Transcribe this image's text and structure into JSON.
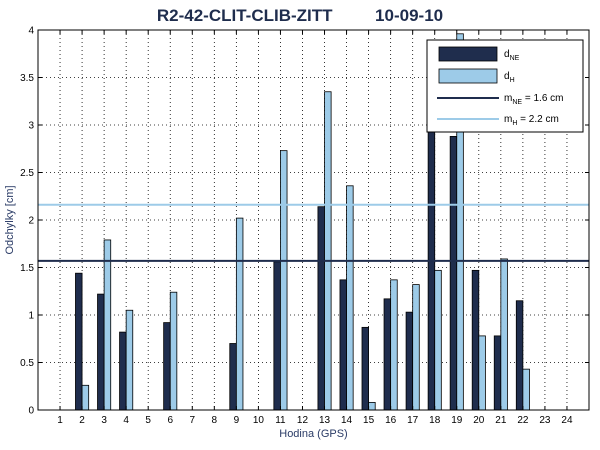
{
  "chart_data": {
    "type": "bar",
    "title_left": "R2-42-CLIT-CLIB-ZITT",
    "title_right": "10-09-10",
    "xlabel": "Hodina (GPS)",
    "ylabel": "Odchylky [cm]",
    "ylim": [
      0,
      4
    ],
    "yticks": [
      "0",
      "0.5",
      "1",
      "1.5",
      "2",
      "2.5",
      "3",
      "3.5",
      "4"
    ],
    "categories": [
      "1",
      "2",
      "3",
      "4",
      "5",
      "6",
      "7",
      "8",
      "9",
      "10",
      "11",
      "12",
      "13",
      "14",
      "15",
      "16",
      "17",
      "18",
      "19",
      "20",
      "21",
      "22",
      "23",
      "24"
    ],
    "grid": true,
    "legend_position": "top-right",
    "series": [
      {
        "name": "d",
        "name_sub": "NE",
        "color": "#1f2d4d",
        "values": [
          null,
          1.44,
          1.22,
          0.82,
          null,
          0.92,
          null,
          null,
          0.7,
          null,
          1.56,
          null,
          2.14,
          1.37,
          0.87,
          1.17,
          1.03,
          3.0,
          2.88,
          1.47,
          0.78,
          1.15,
          null,
          null
        ]
      },
      {
        "name": "d",
        "name_sub": "H",
        "color": "#9dcbe8",
        "values": [
          null,
          0.26,
          1.79,
          1.05,
          null,
          1.24,
          null,
          null,
          2.02,
          null,
          2.73,
          null,
          3.35,
          2.36,
          0.08,
          1.37,
          1.32,
          1.47,
          3.96,
          0.78,
          1.59,
          0.43,
          null,
          null
        ]
      }
    ],
    "reference_lines": [
      {
        "label": "m",
        "label_sub": "NE",
        "label_suffix": " = 1.6 cm",
        "value": 1.57,
        "color": "#1f2d4d"
      },
      {
        "label": "m",
        "label_sub": "H",
        "label_suffix": " = 2.2 cm",
        "value": 2.16,
        "color": "#9dcbe8"
      }
    ]
  }
}
